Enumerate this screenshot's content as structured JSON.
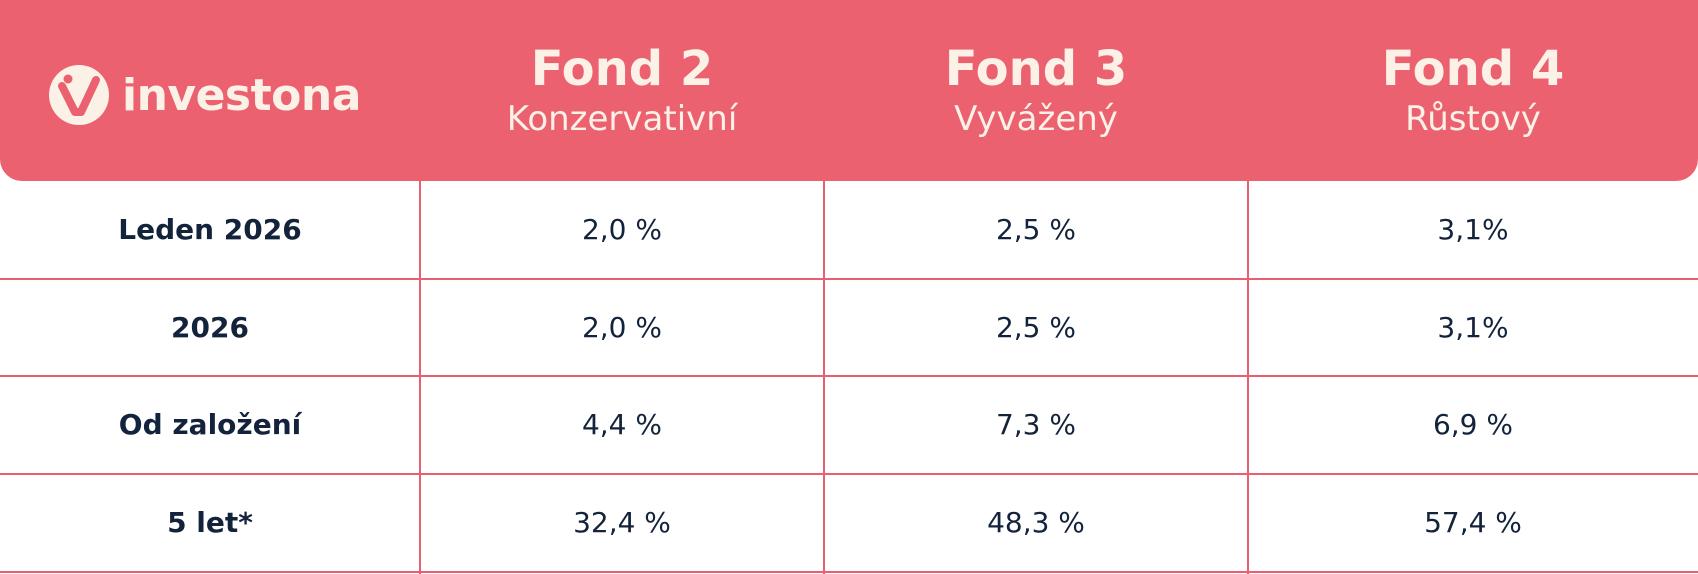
{
  "header": {
    "logo": "investona",
    "columns": [
      {
        "title": "Fond 2",
        "subtitle": "Konzervativní"
      },
      {
        "title": "Fond 3",
        "subtitle": "Vyvážený"
      },
      {
        "title": "Fond 4",
        "subtitle": "Růstový"
      }
    ]
  },
  "table": {
    "rows": [
      [
        "Leden 2026",
        "2,0 %",
        "2,5 %",
        "3,1%"
      ],
      [
        "2026",
        "2,0 %",
        "2,5 %",
        "3,1%"
      ],
      [
        "Od založení",
        "4,4 %",
        "7,3 %",
        "6,9 %"
      ],
      [
        "5 let*",
        "32,4 %",
        "48,3 %",
        "57,4 %"
      ]
    ]
  }
}
